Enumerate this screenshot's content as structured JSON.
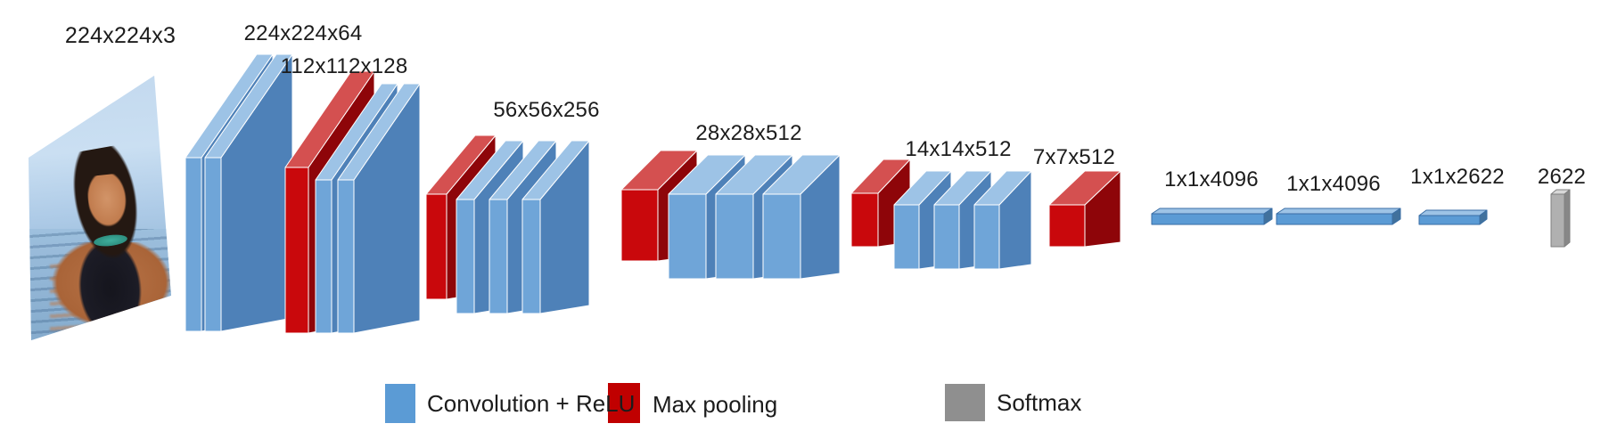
{
  "figure": {
    "background": "#ffffff",
    "kind": "cnn-architecture-diagram"
  },
  "input": {
    "label": "224x224x3"
  },
  "network": {
    "groups": [
      {
        "label": "224x224x64",
        "blocks": [
          "conv",
          "conv"
        ]
      },
      {
        "label": "112x112x128",
        "blocks": [
          "pool",
          "conv",
          "conv"
        ]
      },
      {
        "label": "56x56x256",
        "blocks": [
          "pool",
          "conv",
          "conv",
          "conv"
        ]
      },
      {
        "label": "28x28x512",
        "blocks": [
          "pool",
          "conv",
          "conv",
          "conv"
        ]
      },
      {
        "label": "14x14x512",
        "blocks": [
          "pool",
          "conv",
          "conv",
          "conv"
        ]
      },
      {
        "label": "7x7x512",
        "blocks": [
          "pool"
        ]
      },
      {
        "label": "1x1x4096",
        "blocks": [
          "fc"
        ]
      },
      {
        "label": "1x1x4096",
        "blocks": [
          "fc"
        ]
      },
      {
        "label": "1x1x2622",
        "blocks": [
          "fc"
        ]
      },
      {
        "label": "2622",
        "blocks": [
          "softmax"
        ]
      }
    ]
  },
  "colors": {
    "conv": {
      "front": "#6FA5D8",
      "side": "#4E81B8",
      "top": "#9DC3E6",
      "outline": "#ffffff"
    },
    "pool": {
      "front": "#C9080C",
      "side": "#8E0509",
      "top": "#D45050",
      "outline": "#ffffff"
    },
    "fc": {
      "front": "#5B9BD5",
      "side": "#41719C",
      "top": "#9DC3E6",
      "outline": "#3A6EA5"
    },
    "softmax": {
      "front": "#B0B0B0",
      "side": "#878787",
      "top": "#D8D8D8",
      "outline": "#7F7F7F"
    }
  },
  "legend": {
    "items": [
      {
        "label": "Convolution + ReLU",
        "color": "#5B9BD5"
      },
      {
        "label": "Max pooling",
        "color": "#C00000"
      },
      {
        "label": "Softmax",
        "color": "#8F8F8F"
      }
    ]
  }
}
